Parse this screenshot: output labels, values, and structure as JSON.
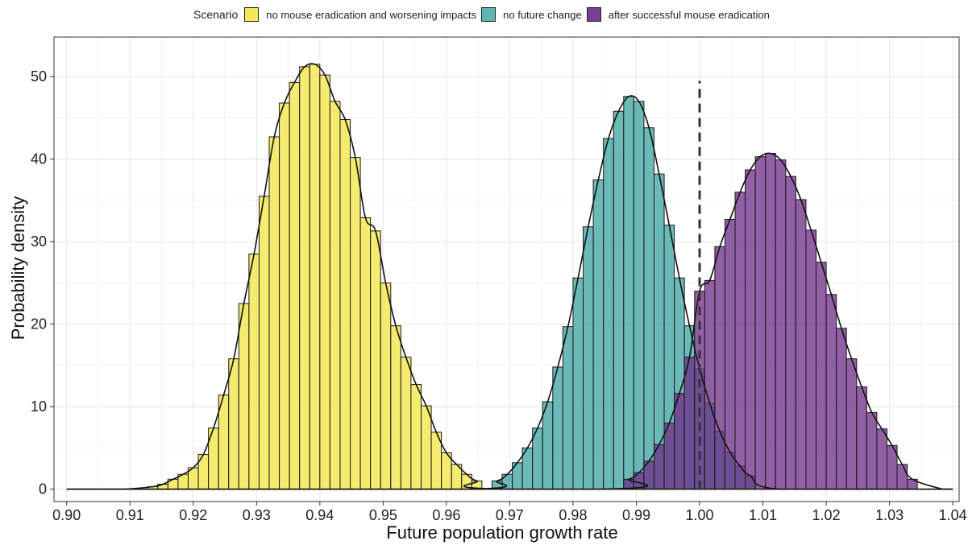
{
  "chart_data": {
    "type": "histogram",
    "xlabel": "Future population growth rate",
    "ylabel": "Probability density",
    "xlim": [
      0.898,
      1.041
    ],
    "ylim": [
      -1.5,
      54.8
    ],
    "xticks": [
      "0.90",
      "0.91",
      "0.92",
      "0.93",
      "0.94",
      "0.95",
      "0.96",
      "0.97",
      "0.98",
      "0.99",
      "1.00",
      "1.01",
      "1.02",
      "1.03",
      "1.04"
    ],
    "yticks": [
      "0",
      "10",
      "20",
      "30",
      "40",
      "50"
    ],
    "grid": true,
    "legend_position": "top",
    "legend_title": "Scenario",
    "reference_line": {
      "x": 1.0,
      "ymax": 49.5,
      "style": "dashed"
    },
    "bin_width": 0.0016,
    "series": [
      {
        "name": "no mouse eradication and worsening impacts",
        "color": "#f3e855",
        "alpha": 0.85,
        "mean": 0.9393,
        "peak_density": 51.6,
        "bins": [
          {
            "x": 0.9136,
            "y": 0.3
          },
          {
            "x": 0.9152,
            "y": 0.6
          },
          {
            "x": 0.9168,
            "y": 1.2
          },
          {
            "x": 0.9184,
            "y": 1.8
          },
          {
            "x": 0.92,
            "y": 2.6
          },
          {
            "x": 0.9216,
            "y": 4.2
          },
          {
            "x": 0.9232,
            "y": 7.4
          },
          {
            "x": 0.9248,
            "y": 11.4
          },
          {
            "x": 0.9264,
            "y": 15.8
          },
          {
            "x": 0.928,
            "y": 22.5
          },
          {
            "x": 0.9296,
            "y": 28.5
          },
          {
            "x": 0.9312,
            "y": 35.5
          },
          {
            "x": 0.9328,
            "y": 42.7
          },
          {
            "x": 0.9344,
            "y": 46.8
          },
          {
            "x": 0.936,
            "y": 49.3
          },
          {
            "x": 0.9376,
            "y": 51.2
          },
          {
            "x": 0.9392,
            "y": 51.5
          },
          {
            "x": 0.9408,
            "y": 50.2
          },
          {
            "x": 0.9424,
            "y": 47.0
          },
          {
            "x": 0.944,
            "y": 44.8
          },
          {
            "x": 0.9456,
            "y": 40.2
          },
          {
            "x": 0.9472,
            "y": 32.9
          },
          {
            "x": 0.9488,
            "y": 31.3
          },
          {
            "x": 0.9504,
            "y": 25.0
          },
          {
            "x": 0.952,
            "y": 19.8
          },
          {
            "x": 0.9536,
            "y": 16.0
          },
          {
            "x": 0.9552,
            "y": 12.7
          },
          {
            "x": 0.9568,
            "y": 10.1
          },
          {
            "x": 0.9584,
            "y": 6.9
          },
          {
            "x": 0.96,
            "y": 4.4
          },
          {
            "x": 0.9616,
            "y": 3.0
          },
          {
            "x": 0.9632,
            "y": 1.8
          },
          {
            "x": 0.9648,
            "y": 1.0
          }
        ]
      },
      {
        "name": "no future change",
        "color": "#3aa3a0",
        "alpha": 0.75,
        "mean": 0.9889,
        "peak_density": 47.8,
        "bins": [
          {
            "x": 0.968,
            "y": 1.0
          },
          {
            "x": 0.9696,
            "y": 1.8
          },
          {
            "x": 0.9712,
            "y": 3.2
          },
          {
            "x": 0.9728,
            "y": 5.0
          },
          {
            "x": 0.9744,
            "y": 7.4
          },
          {
            "x": 0.976,
            "y": 10.6
          },
          {
            "x": 0.9776,
            "y": 14.8
          },
          {
            "x": 0.9792,
            "y": 19.7
          },
          {
            "x": 0.9808,
            "y": 25.6
          },
          {
            "x": 0.9824,
            "y": 31.8
          },
          {
            "x": 0.984,
            "y": 37.5
          },
          {
            "x": 0.9856,
            "y": 42.5
          },
          {
            "x": 0.9872,
            "y": 45.8
          },
          {
            "x": 0.9888,
            "y": 47.6
          },
          {
            "x": 0.9904,
            "y": 47.0
          },
          {
            "x": 0.992,
            "y": 43.8
          },
          {
            "x": 0.9936,
            "y": 38.2
          },
          {
            "x": 0.9952,
            "y": 32.0
          },
          {
            "x": 0.9968,
            "y": 25.6
          },
          {
            "x": 0.9984,
            "y": 19.8
          },
          {
            "x": 1.0,
            "y": 14.6
          },
          {
            "x": 1.0016,
            "y": 10.4
          },
          {
            "x": 1.0032,
            "y": 7.0
          },
          {
            "x": 1.0048,
            "y": 4.5
          },
          {
            "x": 1.0064,
            "y": 2.8
          },
          {
            "x": 1.008,
            "y": 1.6
          }
        ]
      },
      {
        "name": "after successful mouse eradication",
        "color": "#6c2a86",
        "alpha": 0.75,
        "mean": 1.0102,
        "peak_density": 40.7,
        "bins": [
          {
            "x": 0.9888,
            "y": 1.2
          },
          {
            "x": 0.9904,
            "y": 2.0
          },
          {
            "x": 0.992,
            "y": 3.4
          },
          {
            "x": 0.9936,
            "y": 5.4
          },
          {
            "x": 0.9952,
            "y": 8.0
          },
          {
            "x": 0.9968,
            "y": 11.6
          },
          {
            "x": 0.9984,
            "y": 16.0
          },
          {
            "x": 1.0,
            "y": 24.0
          },
          {
            "x": 1.0016,
            "y": 25.3
          },
          {
            "x": 1.0032,
            "y": 29.4
          },
          {
            "x": 1.0048,
            "y": 32.7
          },
          {
            "x": 1.0064,
            "y": 36.0
          },
          {
            "x": 1.008,
            "y": 38.7
          },
          {
            "x": 1.0096,
            "y": 40.3
          },
          {
            "x": 1.0112,
            "y": 40.7
          },
          {
            "x": 1.0128,
            "y": 39.9
          },
          {
            "x": 1.0144,
            "y": 37.9
          },
          {
            "x": 1.016,
            "y": 35.1
          },
          {
            "x": 1.0176,
            "y": 31.4
          },
          {
            "x": 1.0192,
            "y": 27.5
          },
          {
            "x": 1.0208,
            "y": 23.6
          },
          {
            "x": 1.0224,
            "y": 19.5
          },
          {
            "x": 1.024,
            "y": 15.8
          },
          {
            "x": 1.0256,
            "y": 12.4
          },
          {
            "x": 1.0272,
            "y": 9.3
          },
          {
            "x": 1.0288,
            "y": 7.3
          },
          {
            "x": 1.0304,
            "y": 5.3
          },
          {
            "x": 1.032,
            "y": 3.0
          },
          {
            "x": 1.0336,
            "y": 1.2
          }
        ]
      }
    ]
  }
}
